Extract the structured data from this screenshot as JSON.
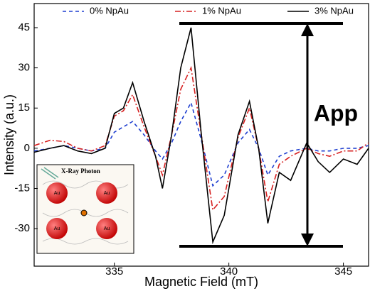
{
  "chart_data": {
    "type": "line",
    "xlabel": "Magnetic Field (mT)",
    "ylabel": "Intensity (a.u.)",
    "x": [
      331.5,
      332.2,
      332.8,
      333.4,
      334.0,
      334.6,
      335.0,
      335.4,
      335.8,
      336.3,
      336.8,
      337.1,
      337.5,
      337.9,
      338.35,
      338.8,
      339.3,
      339.8,
      340.4,
      340.9,
      341.3,
      341.7,
      342.2,
      342.7,
      343.4,
      343.9,
      344.4,
      345.0,
      345.6,
      346.1
    ],
    "series": [
      {
        "name": "0% NpAu",
        "color": "#1f3fd0",
        "dash": "dashed",
        "values": [
          -1,
          0,
          1,
          0,
          -1,
          0,
          6,
          8,
          10,
          5,
          -1,
          -4,
          2,
          10,
          17,
          3,
          -14,
          -10,
          2,
          7,
          0,
          -10,
          -3,
          -1,
          0,
          -1,
          -1,
          0,
          0,
          1
        ]
      },
      {
        "name": "1% NpAu",
        "color": "#d62020",
        "dash": "dashdot",
        "values": [
          1,
          3,
          2.5,
          0,
          -1,
          1,
          12,
          14,
          20,
          8,
          -3,
          -10,
          5,
          22,
          30,
          5,
          -23,
          -18,
          4,
          15,
          0,
          -20,
          -6,
          -3,
          0,
          -2,
          -3,
          -1,
          -1,
          2
        ]
      },
      {
        "name": "3% NpAu",
        "color": "#000000",
        "dash": "solid",
        "values": [
          -1.5,
          0,
          1,
          -1,
          -2,
          0,
          13,
          15,
          24.5,
          10,
          -3,
          -15,
          5,
          30,
          45,
          5,
          -35,
          -25,
          5,
          17.5,
          0,
          -28,
          -9,
          -12,
          2,
          -5,
          -9,
          -4,
          -6,
          0
        ]
      }
    ],
    "xlim": [
      331.5,
      346.1
    ],
    "ylim": [
      -44,
      54
    ],
    "xticks": [
      335,
      340,
      345
    ],
    "yticks": [
      -30,
      -15,
      0,
      15,
      30,
      45
    ],
    "legend": "top",
    "annotation": "App",
    "inset": {
      "label": "X-Ray Photon",
      "particles": [
        "Au",
        "Au",
        "Au",
        "Au"
      ]
    }
  }
}
